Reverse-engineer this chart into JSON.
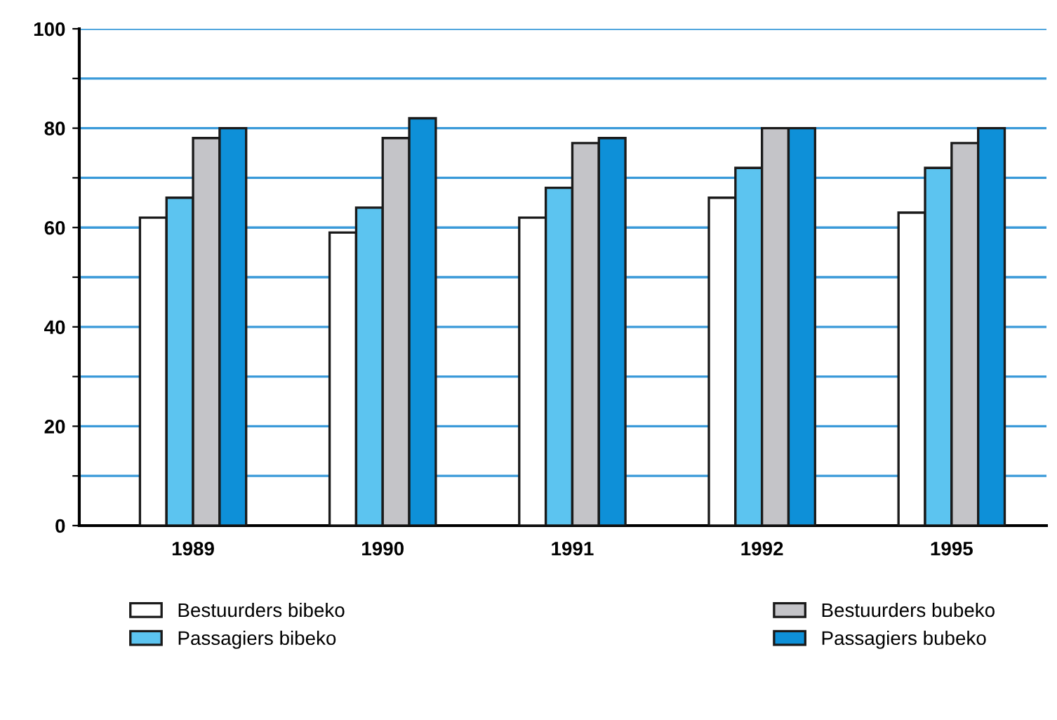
{
  "chart_data": {
    "type": "bar",
    "categories": [
      "1989",
      "1990",
      "1991",
      "1992",
      "1995"
    ],
    "series": [
      {
        "name": "Bestuurders bibeko",
        "color": "#ffffff",
        "values": [
          62,
          59,
          62,
          66,
          63
        ]
      },
      {
        "name": "Passagiers bibeko",
        "color": "#5cc4f0",
        "values": [
          66,
          64,
          68,
          72,
          72
        ]
      },
      {
        "name": "Bestuurders bubeko",
        "color": "#c4c4c8",
        "values": [
          78,
          78,
          77,
          80,
          77
        ]
      },
      {
        "name": "Passagiers bubeko",
        "color": "#0e90d8",
        "values": [
          80,
          82,
          78,
          80,
          80
        ]
      }
    ],
    "ylim": [
      0,
      100
    ],
    "yticks": [
      0,
      {
        "value": 10,
        "label": null
      },
      20,
      {
        "value": 30,
        "label": null
      },
      40,
      {
        "value": 50,
        "label": null
      },
      60,
      {
        "value": 70,
        "label": null
      },
      80,
      {
        "value": 90,
        "label": null
      },
      100
    ],
    "grid": "y",
    "legend": "bottom"
  }
}
